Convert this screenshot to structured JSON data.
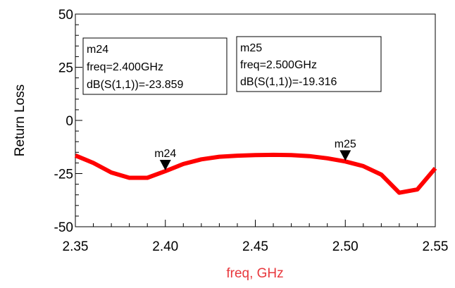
{
  "chart_data": {
    "type": "line",
    "title": "",
    "xlabel": "freq, GHz",
    "ylabel": "Return Loss",
    "xlim": [
      2.35,
      2.55
    ],
    "ylim": [
      -50,
      50
    ],
    "x_ticks": [
      "2.35",
      "2.40",
      "2.45",
      "2.50",
      "2.55"
    ],
    "y_ticks": [
      "50",
      "25",
      "0",
      "-25",
      "-50"
    ],
    "grid": false,
    "series": [
      {
        "color": "#ff0000",
        "x": [
          2.35,
          2.36,
          2.37,
          2.38,
          2.39,
          2.4,
          2.41,
          2.42,
          2.43,
          2.44,
          2.45,
          2.46,
          2.47,
          2.48,
          2.49,
          2.5,
          2.51,
          2.52,
          2.53,
          2.54,
          2.55
        ],
        "y": [
          -16.5,
          -20,
          -24.5,
          -27,
          -27,
          -23.859,
          -20.5,
          -18.3,
          -17.1,
          -16.6,
          -16.3,
          -16.2,
          -16.3,
          -16.8,
          -17.8,
          -19.316,
          -21.5,
          -25.5,
          -34,
          -32.5,
          -22.5
        ]
      }
    ],
    "markers": [
      {
        "name": "m24",
        "freq": "freq=2.400GHz",
        "value": "dB(S(1,1))=-23.859",
        "x": 2.4,
        "y": -23.859
      },
      {
        "name": "m25",
        "freq": "freq=2.500GHz",
        "value": "dB(S(1,1))=-19.316",
        "x": 2.5,
        "y": -19.316
      }
    ]
  },
  "colors": {
    "axis_label": "#e8383d",
    "trace": "#ff0000",
    "axis": "#000000"
  }
}
